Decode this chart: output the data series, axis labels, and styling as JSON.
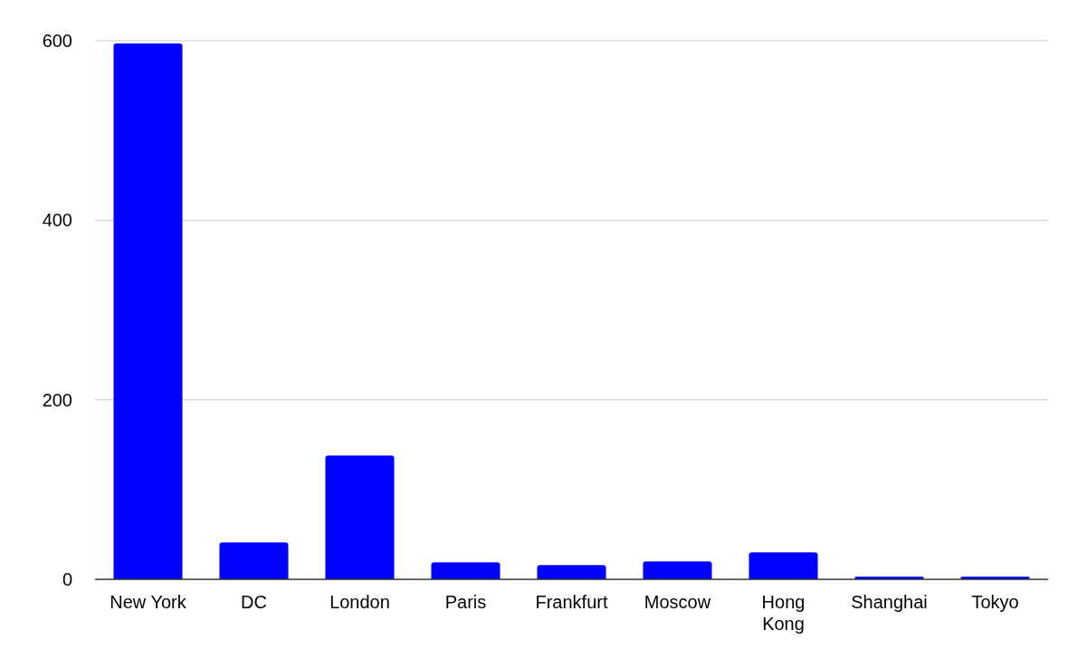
{
  "chart_data": {
    "type": "bar",
    "categories": [
      "New York",
      "DC",
      "London",
      "Paris",
      "Frankfurt",
      "Moscow",
      "Hong Kong",
      "Shanghai",
      "Tokyo"
    ],
    "values": [
      597,
      41,
      138,
      19,
      16,
      20,
      30,
      3,
      3
    ],
    "color": "#0000ff",
    "ylim": [
      0,
      600
    ],
    "yticks": [
      0,
      200,
      400,
      600
    ],
    "grid": "y"
  }
}
